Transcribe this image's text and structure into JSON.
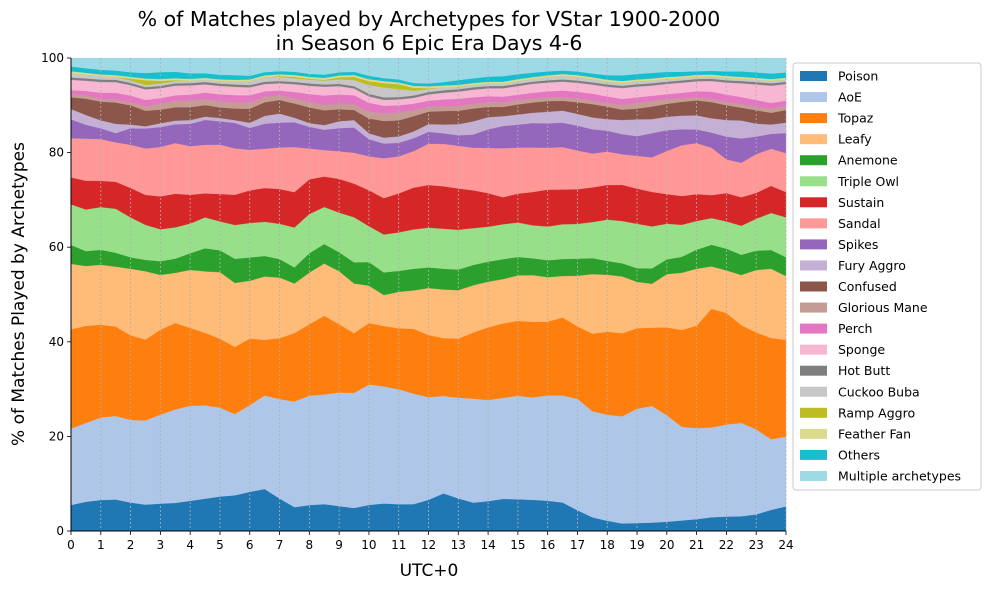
{
  "chart_data": {
    "type": "area",
    "stacked": true,
    "title": "% of Matches played by Archetypes for VStar 1900-2000",
    "subtitle": "in Season 6 Epic Era Days 4-6",
    "xlabel": "UTC+0",
    "ylabel": "% of Matches Played by Archetypes",
    "xlim": [
      0,
      24
    ],
    "ylim": [
      0,
      100
    ],
    "x_ticks": [
      "0",
      "1",
      "2",
      "3",
      "4",
      "5",
      "6",
      "7",
      "8",
      "9",
      "10",
      "11",
      "12",
      "13",
      "14",
      "15",
      "16",
      "17",
      "18",
      "19",
      "20",
      "21",
      "22",
      "23",
      "24"
    ],
    "y_ticks": [
      "0",
      "20",
      "40",
      "60",
      "80",
      "100"
    ],
    "grid": "vertical dashed gridlines at each hour",
    "legend_position": "right, outside the plot",
    "x": [
      0,
      0.5,
      1,
      1.5,
      2,
      2.5,
      3,
      3.5,
      4,
      4.5,
      5,
      5.5,
      6,
      6.5,
      7,
      7.5,
      8,
      8.5,
      9,
      9.5,
      10,
      10.5,
      11,
      11.5,
      12,
      12.5,
      13,
      13.5,
      14,
      14.5,
      15,
      15.5,
      16,
      16.5,
      17,
      17.5,
      18,
      18.5,
      19,
      19.5,
      20,
      20.5,
      21,
      21.5,
      22,
      22.5,
      23,
      23.5,
      24
    ],
    "series": [
      {
        "name": "Poison",
        "color": "#1f77b4",
        "values": [
          5.5,
          6.3,
          6.6,
          6.8,
          6.2,
          5.8,
          6.0,
          6.1,
          6.5,
          7.0,
          7.4,
          7.7,
          8.4,
          9.2,
          7.2,
          5.2,
          5.6,
          5.8,
          5.4,
          5.0,
          5.3,
          5.6,
          5.5,
          5.6,
          6.5,
          7.8,
          6.8,
          6.0,
          6.4,
          6.9,
          6.9,
          7.0,
          6.8,
          6.4,
          4.6,
          3.0,
          2.2,
          1.6,
          1.7,
          1.8,
          2.0,
          2.3,
          2.6,
          3.0,
          3.1,
          3.2,
          3.6,
          4.5,
          5.5
        ]
      },
      {
        "name": "AoE",
        "color": "#aec7e8",
        "values": [
          16.2,
          17.0,
          17.6,
          18.0,
          18.0,
          18.5,
          19.5,
          20.3,
          20.5,
          20.2,
          19.1,
          17.5,
          18.6,
          20.5,
          22.0,
          23.0,
          23.7,
          23.7,
          24.6,
          25.0,
          24.5,
          23.8,
          23.6,
          23.0,
          21.4,
          20.2,
          21.0,
          22.0,
          21.7,
          21.7,
          22.5,
          23.0,
          23.7,
          24.0,
          24.7,
          23.2,
          22.9,
          22.8,
          24.4,
          25.0,
          23.0,
          20.5,
          20.0,
          19.5,
          19.9,
          20.3,
          18.4,
          15.1,
          15.5
        ]
      },
      {
        "name": "Topaz",
        "color": "#ff7f0e",
        "values": [
          21.0,
          21.0,
          19.8,
          19.3,
          18.4,
          17.8,
          18.6,
          18.8,
          16.8,
          15.7,
          14.8,
          14.5,
          14.3,
          12.2,
          13.5,
          14.9,
          15.5,
          17.0,
          14.8,
          13.0,
          12.5,
          12.3,
          12.5,
          13.5,
          13.0,
          12.0,
          12.3,
          14.0,
          15.6,
          16.0,
          16.3,
          17.0,
          16.6,
          17.5,
          16.1,
          17.0,
          17.9,
          17.7,
          17.2,
          16.8,
          19.0,
          21.2,
          22.5,
          25.8,
          24.1,
          21.3,
          21.0,
          21.6,
          21.6
        ]
      },
      {
        "name": "Leafy",
        "color": "#ffbb78",
        "values": [
          13.9,
          12.9,
          12.8,
          12.9,
          14.5,
          15.0,
          12.0,
          10.9,
          12.5,
          13.3,
          14.3,
          13.8,
          12.4,
          13.9,
          13.4,
          10.8,
          11.2,
          11.3,
          11.5,
          10.8,
          7.6,
          6.3,
          7.5,
          8.0,
          9.8,
          10.1,
          10.1,
          10.0,
          9.8,
          9.5,
          9.9,
          10.5,
          10.0,
          9.3,
          11.2,
          13.0,
          12.3,
          12.1,
          9.9,
          9.4,
          11.5,
          12.5,
          12.5,
          9.2,
          9.2,
          10.9,
          13.5,
          14.8,
          14.2
        ]
      },
      {
        "name": "Anemone",
        "color": "#2ca02c",
        "values": [
          4.0,
          3.2,
          3.2,
          3.0,
          2.5,
          2.5,
          3.0,
          3.1,
          3.6,
          5.0,
          4.7,
          5.2,
          5.0,
          4.5,
          4.1,
          3.5,
          4.2,
          4.2,
          4.1,
          4.6,
          4.8,
          4.6,
          4.3,
          4.5,
          4.3,
          4.3,
          4.3,
          4.3,
          4.3,
          4.3,
          4.0,
          3.8,
          3.8,
          3.8,
          3.8,
          3.5,
          3.0,
          2.8,
          2.9,
          3.3,
          3.2,
          3.5,
          4.2,
          4.7,
          4.7,
          4.4,
          4.2,
          4.0,
          4.2
        ]
      },
      {
        "name": "Triple Owl",
        "color": "#98df8a",
        "values": [
          8.6,
          9.0,
          9.1,
          9.5,
          8.7,
          7.7,
          7.0,
          6.8,
          6.4,
          6.7,
          6.2,
          7.3,
          7.4,
          7.5,
          7.8,
          8.7,
          8.5,
          8.0,
          8.6,
          9.8,
          7.3,
          7.7,
          7.9,
          8.2,
          8.3,
          8.3,
          8.3,
          7.8,
          7.5,
          7.5,
          7.5,
          7.4,
          7.6,
          7.8,
          7.7,
          7.9,
          8.9,
          9.0,
          9.5,
          9.0,
          7.7,
          7.0,
          6.3,
          5.8,
          5.9,
          6.3,
          6.9,
          7.9,
          8.9
        ]
      },
      {
        "name": "Sustain",
        "color": "#d62728",
        "values": [
          5.7,
          6.2,
          5.6,
          5.8,
          6.4,
          6.6,
          7.2,
          7.3,
          6.2,
          5.2,
          5.9,
          6.5,
          7.0,
          7.4,
          7.7,
          7.7,
          7.5,
          6.6,
          7.3,
          7.3,
          7.3,
          7.4,
          8.0,
          8.7,
          8.9,
          8.8,
          8.6,
          8.0,
          7.2,
          5.8,
          6.3,
          7.5,
          8.3,
          7.8,
          7.7,
          7.6,
          7.5,
          7.7,
          7.5,
          7.4,
          6.4,
          6.3,
          5.9,
          5.0,
          6.1,
          6.2,
          5.6,
          5.8,
          5.6
        ]
      },
      {
        "name": "Sandal",
        "color": "#ff9896",
        "values": [
          8.3,
          9.1,
          8.9,
          8.5,
          9.4,
          10.2,
          10.8,
          11.0,
          10.5,
          10.5,
          10.6,
          10.0,
          8.7,
          8.6,
          9.2,
          9.8,
          6.7,
          5.7,
          6.0,
          6.7,
          6.9,
          8.1,
          7.6,
          7.6,
          8.6,
          8.8,
          8.9,
          9.0,
          9.7,
          10.5,
          10.0,
          10.0,
          9.4,
          9.5,
          8.6,
          7.4,
          7.2,
          6.5,
          7.0,
          7.4,
          9.3,
          11.1,
          11.2,
          10.3,
          7.3,
          7.5,
          8.4,
          7.9,
          8.7
        ]
      },
      {
        "name": "Spikes",
        "color": "#9467bd",
        "values": [
          4.0,
          3.0,
          2.3,
          2.0,
          3.6,
          4.4,
          4.4,
          4.1,
          4.8,
          5.4,
          5.0,
          5.5,
          4.7,
          5.5,
          5.5,
          5.4,
          4.7,
          4.4,
          5.0,
          5.5,
          3.5,
          3.0,
          2.8,
          2.7,
          2.5,
          2.2,
          2.2,
          2.8,
          4.0,
          4.8,
          5.0,
          5.5,
          5.5,
          5.5,
          5.5,
          5.3,
          4.5,
          4.3,
          4.2,
          5.2,
          4.5,
          3.5,
          3.0,
          3.3,
          4.9,
          5.3,
          3.8,
          3.2,
          4.5
        ]
      },
      {
        "name": "Fury Aggro",
        "color": "#c5b0d5",
        "values": [
          2.2,
          2.1,
          1.7,
          2.0,
          0.8,
          0.5,
          0.8,
          0.8,
          0.8,
          0.7,
          0.7,
          0.6,
          1.1,
          1.7,
          2.0,
          1.0,
          0.8,
          1.0,
          1.5,
          1.6,
          1.2,
          1.2,
          1.3,
          1.4,
          1.6,
          1.8,
          2.3,
          2.8,
          2.6,
          2.1,
          2.2,
          2.3,
          2.6,
          2.7,
          2.6,
          2.6,
          2.5,
          3.0,
          3.6,
          3.0,
          2.9,
          3.0,
          3.1,
          3.1,
          3.6,
          3.9,
          2.8,
          2.0,
          2.3
        ]
      },
      {
        "name": "Confused",
        "color": "#8c564b",
        "values": [
          2.5,
          3.5,
          4.0,
          4.6,
          4.2,
          3.4,
          3.0,
          2.9,
          2.8,
          2.5,
          2.3,
          2.5,
          3.0,
          3.0,
          3.0,
          3.1,
          3.4,
          3.2,
          2.6,
          2.2,
          3.0,
          3.4,
          3.3,
          3.2,
          2.6,
          2.8,
          2.8,
          2.7,
          2.2,
          2.0,
          2.2,
          2.3,
          2.4,
          2.2,
          2.6,
          2.9,
          2.7,
          2.2,
          2.3,
          2.7,
          2.8,
          3.0,
          3.3,
          3.5,
          3.2,
          2.8,
          2.9,
          2.5,
          2.8
        ]
      },
      {
        "name": "Glorious Mane",
        "color": "#c49c94",
        "values": [
          0.7,
          0.7,
          0.6,
          0.6,
          0.6,
          1.0,
          1.3,
          1.4,
          1.4,
          1.3,
          1.3,
          1.3,
          1.3,
          1.2,
          1.0,
          1.1,
          1.2,
          1.2,
          1.2,
          1.2,
          1.4,
          1.5,
          1.6,
          1.2,
          1.0,
          1.0,
          1.0,
          1.0,
          1.0,
          1.0,
          0.9,
          0.9,
          0.8,
          0.8,
          0.8,
          0.8,
          0.8,
          1.0,
          1.2,
          1.2,
          1.0,
          0.8,
          0.7,
          0.7,
          0.7,
          0.8,
          0.8,
          0.9,
          1.0
        ]
      },
      {
        "name": "Perch",
        "color": "#e377c2",
        "values": [
          0.8,
          1.0,
          1.3,
          1.5,
          1.5,
          1.4,
          1.2,
          1.2,
          1.3,
          1.4,
          1.5,
          1.6,
          1.6,
          1.2,
          1.1,
          1.4,
          1.7,
          2.0,
          2.0,
          2.0,
          1.8,
          1.6,
          1.5,
          1.4,
          1.3,
          1.4,
          1.5,
          1.4,
          1.3,
          1.2,
          1.2,
          1.3,
          1.4,
          1.5,
          1.5,
          1.5,
          1.4,
          1.3,
          1.2,
          1.1,
          1.1,
          1.2,
          1.3,
          1.6,
          1.6,
          1.5,
          1.4,
          1.2,
          1.1
        ]
      },
      {
        "name": "Sponge",
        "color": "#f7b6d2",
        "values": [
          2.2,
          2.2,
          2.3,
          2.3,
          2.3,
          2.3,
          2.2,
          2.1,
          2.0,
          1.8,
          1.8,
          1.8,
          1.7,
          1.6,
          1.6,
          1.7,
          1.8,
          1.9,
          1.8,
          1.5,
          1.3,
          1.2,
          1.2,
          1.2,
          1.3,
          1.4,
          1.5,
          1.6,
          1.7,
          1.8,
          1.9,
          2.0,
          2.0,
          2.0,
          2.0,
          2.0,
          2.1,
          2.3,
          2.3,
          2.2,
          2.2,
          2.2,
          2.2,
          2.3,
          2.6,
          3.0,
          3.4,
          3.7,
          3.7
        ]
      },
      {
        "name": "Hot Butt",
        "color": "#7f7f7f",
        "values": [
          0.5,
          0.5,
          0.5,
          0.5,
          0.5,
          0.5,
          0.5,
          0.5,
          0.5,
          0.5,
          0.5,
          0.5,
          0.5,
          0.5,
          0.5,
          0.5,
          0.5,
          0.5,
          0.5,
          0.5,
          0.5,
          0.5,
          0.5,
          0.5,
          0.5,
          0.5,
          0.5,
          0.5,
          0.5,
          0.5,
          0.5,
          0.5,
          0.5,
          0.5,
          0.5,
          0.5,
          0.5,
          0.5,
          0.5,
          0.5,
          0.5,
          0.5,
          0.5,
          0.5,
          0.5,
          0.5,
          0.5,
          0.5,
          0.5
        ]
      },
      {
        "name": "Cuckoo Buba",
        "color": "#c7c7c7",
        "values": [
          0.9,
          0.8,
          0.7,
          0.6,
          0.5,
          0.5,
          0.5,
          0.5,
          0.5,
          0.5,
          0.5,
          0.6,
          0.8,
          1.0,
          0.9,
          0.8,
          0.8,
          0.8,
          1.0,
          1.3,
          1.8,
          2.0,
          1.6,
          1.0,
          0.6,
          0.6,
          0.5,
          0.5,
          0.5,
          0.5,
          0.6,
          0.6,
          0.7,
          0.8,
          0.8,
          0.7,
          0.6,
          0.6,
          0.6,
          0.6,
          0.6,
          0.5,
          0.5,
          0.5,
          0.5,
          0.5,
          0.5,
          0.5,
          0.5
        ]
      },
      {
        "name": "Ramp Aggro",
        "color": "#bcbd22",
        "values": [
          0.0,
          0.0,
          0.0,
          0.0,
          0.4,
          1.0,
          0.6,
          0.2,
          0.0,
          0.0,
          0.0,
          0.0,
          0.0,
          0.0,
          0.2,
          0.3,
          0.2,
          0.2,
          0.4,
          0.7,
          0.8,
          0.9,
          1.0,
          0.6,
          0.2,
          0.0,
          0.0,
          0.0,
          0.0,
          0.0,
          0.0,
          0.0,
          0.0,
          0.0,
          0.0,
          0.0,
          0.0,
          0.0,
          0.0,
          0.0,
          0.0,
          0.0,
          0.0,
          0.0,
          0.0,
          0.0,
          0.0,
          0.0,
          0.0
        ]
      },
      {
        "name": "Feather Fan",
        "color": "#dbdb8d",
        "values": [
          0.4,
          0.4,
          0.4,
          0.4,
          0.4,
          0.4,
          0.4,
          0.4,
          0.4,
          0.4,
          0.4,
          0.4,
          0.4,
          0.4,
          0.4,
          0.4,
          0.4,
          0.4,
          0.4,
          0.4,
          0.4,
          0.4,
          0.4,
          0.4,
          0.4,
          0.4,
          0.4,
          0.4,
          0.4,
          0.4,
          0.4,
          0.4,
          0.4,
          0.4,
          0.4,
          0.4,
          0.4,
          0.4,
          0.4,
          0.4,
          0.4,
          0.4,
          0.4,
          0.4,
          0.4,
          0.4,
          0.4,
          0.4,
          0.4
        ]
      },
      {
        "name": "Others",
        "color": "#17becf",
        "values": [
          1.0,
          1.0,
          1.0,
          1.0,
          1.0,
          1.2,
          1.5,
          1.4,
          1.2,
          1.0,
          1.0,
          1.0,
          0.8,
          0.7,
          0.7,
          0.7,
          0.7,
          0.7,
          0.7,
          0.7,
          0.7,
          0.6,
          0.6,
          0.6,
          0.6,
          0.7,
          1.0,
          1.0,
          1.1,
          1.2,
          1.1,
          1.0,
          0.9,
          0.8,
          0.8,
          0.8,
          1.0,
          1.2,
          1.2,
          1.2,
          1.1,
          1.0,
          0.8,
          0.8,
          1.0,
          1.2,
          1.2,
          1.2,
          1.2
        ]
      },
      {
        "name": "Multiple archetypes",
        "color": "#9edae5",
        "values": [
          1.8,
          2.2,
          2.5,
          2.7,
          3.1,
          3.3,
          3.1,
          3.0,
          3.3,
          3.3,
          3.6,
          3.7,
          3.8,
          3.1,
          2.9,
          3.0,
          3.4,
          3.6,
          3.1,
          3.0,
          3.6,
          4.1,
          4.4,
          5.2,
          5.3,
          5.0,
          4.6,
          4.3,
          4.0,
          3.9,
          3.5,
          3.3,
          3.0,
          2.8,
          3.0,
          3.4,
          3.7,
          3.7,
          3.4,
          3.2,
          3.0,
          3.0,
          2.9,
          2.8,
          2.9,
          2.9,
          3.1,
          3.3,
          3.2
        ]
      }
    ]
  }
}
